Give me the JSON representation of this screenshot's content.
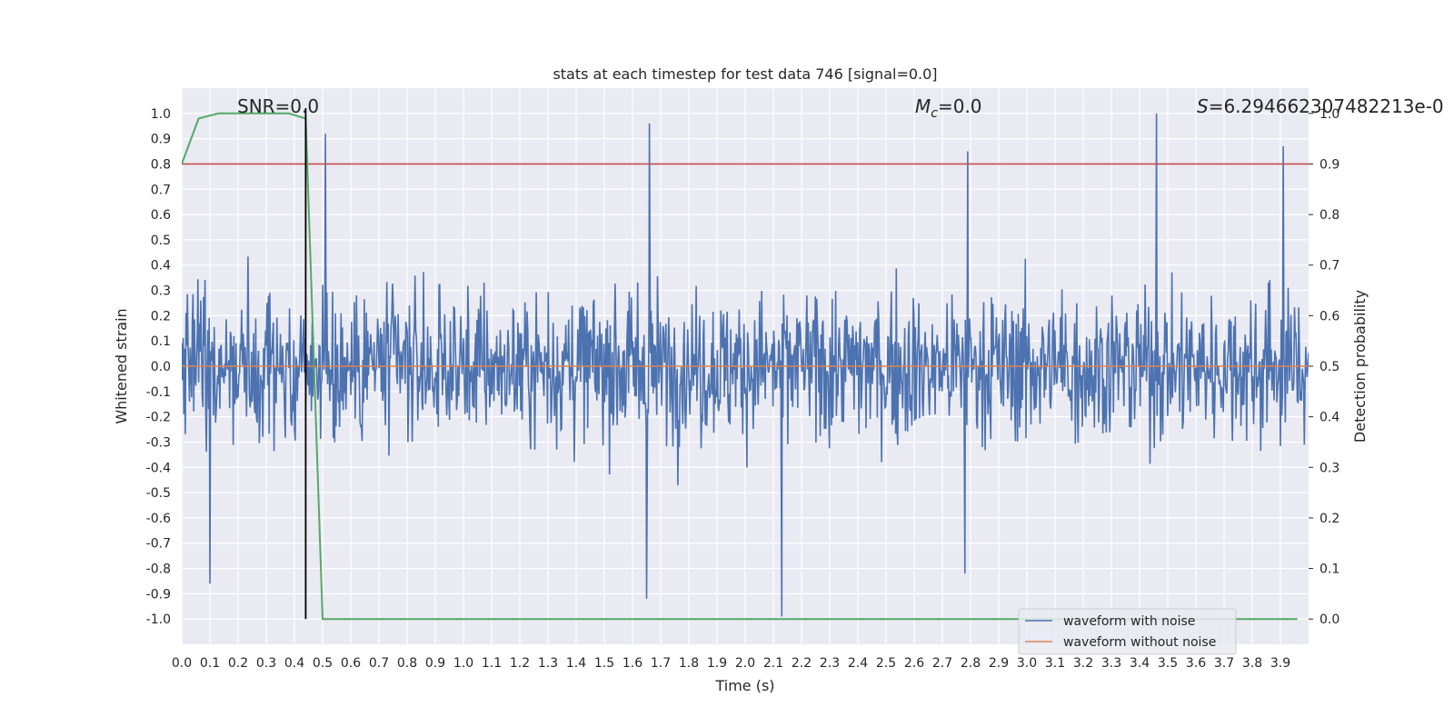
{
  "chart_data": {
    "type": "line",
    "title": "stats at each timestep for test data 746 [signal=0.0]",
    "xlabel": "Time (s)",
    "ylabel": "Whitened strain",
    "ylabel_right": "Detection probability",
    "xlim": [
      0.0,
      4.0
    ],
    "ylim": [
      -1.1,
      1.1
    ],
    "ylim_right": [
      -0.05,
      1.05
    ],
    "grid": true,
    "legend_position": "lower-right",
    "x_ticks": [
      "0.0",
      "0.1",
      "0.2",
      "0.3",
      "0.4",
      "0.5",
      "0.6",
      "0.7",
      "0.8",
      "0.9",
      "1.0",
      "1.1",
      "1.2",
      "1.3",
      "1.4",
      "1.5",
      "1.6",
      "1.7",
      "1.8",
      "1.9",
      "2.0",
      "2.1",
      "2.2",
      "2.3",
      "2.4",
      "2.5",
      "2.6",
      "2.7",
      "2.8",
      "2.9",
      "3.0",
      "3.1",
      "3.2",
      "3.3",
      "3.4",
      "3.5",
      "3.6",
      "3.7",
      "3.8",
      "3.9"
    ],
    "y_ticks_left": [
      "1.0",
      "0.9",
      "0.8",
      "0.7",
      "0.6",
      "0.5",
      "0.4",
      "0.3",
      "0.2",
      "0.1",
      "0.0",
      "-0.1",
      "-0.2",
      "-0.3",
      "-0.4",
      "-0.5",
      "-0.6",
      "-0.7",
      "-0.8",
      "-0.9",
      "-1.0"
    ],
    "y_ticks_right": [
      "1.0",
      "0.9",
      "0.8",
      "0.7",
      "0.6",
      "0.5",
      "0.4",
      "0.3",
      "0.2",
      "0.1",
      "0.0"
    ],
    "annotations": {
      "snr": "SNR=0.0",
      "mc_symbol": "M",
      "mc_sub": "c",
      "mc_value": "=0.0",
      "s_symbol": "S",
      "s_value": "=6.294662307482213e-0"
    },
    "series": [
      {
        "name": "waveform with noise",
        "color": "#4c72b0",
        "style": "noise",
        "typical_amplitude": 0.25,
        "peak_points": [
          {
            "x": 0.1,
            "y": -0.86
          },
          {
            "x": 0.51,
            "y": 0.92
          },
          {
            "x": 1.66,
            "y": 0.96
          },
          {
            "x": 1.65,
            "y": -0.92
          },
          {
            "x": 2.13,
            "y": -0.99
          },
          {
            "x": 2.79,
            "y": 0.85
          },
          {
            "x": 2.78,
            "y": -0.82
          },
          {
            "x": 3.46,
            "y": 1.0
          },
          {
            "x": 3.91,
            "y": 0.87
          }
        ]
      },
      {
        "name": "waveform without noise",
        "color": "#dd8452",
        "x": [
          0.0,
          4.0
        ],
        "y": [
          0.0,
          0.0
        ]
      },
      {
        "name": "detection probability",
        "color": "#55a868",
        "axis": "right",
        "x": [
          0.0,
          0.06,
          0.13,
          0.2,
          0.26,
          0.32,
          0.38,
          0.44,
          0.5,
          0.56,
          1.0,
          2.0,
          3.0,
          3.96
        ],
        "y": [
          0.9,
          0.99,
          1.0,
          1.0,
          1.0,
          1.0,
          1.0,
          0.99,
          0.0,
          0.0,
          0.0,
          0.0,
          0.0,
          0.0
        ]
      }
    ],
    "threshold": {
      "axis": "right",
      "y": 0.9,
      "color": "#c44e52"
    },
    "marker_line": {
      "x": 0.44,
      "color": "#000000"
    },
    "legend": [
      "waveform with noise",
      "waveform without noise"
    ]
  }
}
